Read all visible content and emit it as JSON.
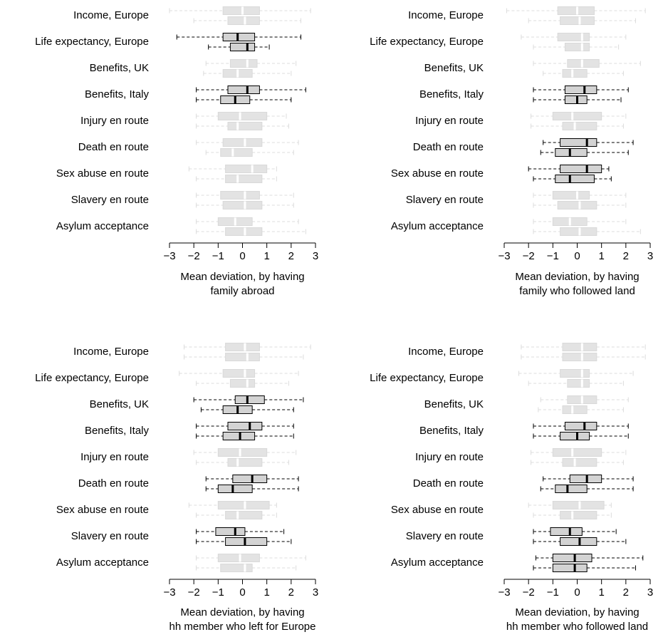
{
  "chart_data": [
    {
      "type": "boxplot",
      "xlabel": [
        "Mean deviation, by having",
        "family abroad"
      ],
      "xlim": [
        -3,
        3
      ],
      "xticks": [
        -3,
        -2,
        -1,
        0,
        1,
        2,
        3
      ],
      "categories": [
        "Income, Europe",
        "Life expectancy, Europe",
        "Benefits, UK",
        "Benefits, Italy",
        "Injury en route",
        "Death en route",
        "Sex abuse en route",
        "Slavery en route",
        "Asylum acceptance"
      ],
      "highlighted": [
        1,
        3
      ],
      "boxes": [
        [
          {
            "min": -3.0,
            "q1": -0.8,
            "median": 0.0,
            "q3": 0.7,
            "max": 2.8
          },
          {
            "min": -2.0,
            "q1": -0.6,
            "median": 0.1,
            "q3": 0.7,
            "max": 2.4
          }
        ],
        [
          {
            "min": -2.7,
            "q1": -0.8,
            "median": -0.2,
            "q3": 0.5,
            "max": 2.4
          },
          {
            "min": -1.4,
            "q1": -0.5,
            "median": 0.2,
            "q3": 0.5,
            "max": 1.1
          }
        ],
        [
          {
            "min": -1.5,
            "q1": -0.5,
            "median": 0.2,
            "q3": 0.6,
            "max": 2.2
          },
          {
            "min": -1.6,
            "q1": -0.8,
            "median": -0.2,
            "q3": 0.4,
            "max": 2.0
          }
        ],
        [
          {
            "min": -1.9,
            "q1": -0.6,
            "median": 0.2,
            "q3": 0.7,
            "max": 2.6
          },
          {
            "min": -1.9,
            "q1": -0.9,
            "median": -0.3,
            "q3": 0.3,
            "max": 2.0
          }
        ],
        [
          {
            "min": -1.9,
            "q1": -1.0,
            "median": -0.1,
            "q3": 1.0,
            "max": 1.8
          },
          {
            "min": -1.9,
            "q1": -0.6,
            "median": -0.2,
            "q3": 0.8,
            "max": 1.9
          }
        ],
        [
          {
            "min": -1.9,
            "q1": -0.8,
            "median": 0.1,
            "q3": 0.8,
            "max": 2.3
          },
          {
            "min": -1.5,
            "q1": -0.9,
            "median": -0.4,
            "q3": 0.4,
            "max": 2.1
          }
        ],
        [
          {
            "min": -2.2,
            "q1": -0.7,
            "median": 0.4,
            "q3": 1.0,
            "max": 1.4
          },
          {
            "min": -1.9,
            "q1": -0.7,
            "median": -0.2,
            "q3": 0.8,
            "max": 1.4
          }
        ],
        [
          {
            "min": -1.9,
            "q1": -0.9,
            "median": 0.1,
            "q3": 0.7,
            "max": 2.1
          },
          {
            "min": -1.9,
            "q1": -0.8,
            "median": 0.1,
            "q3": 0.8,
            "max": 2.1
          }
        ],
        [
          {
            "min": -1.9,
            "q1": -1.0,
            "median": -0.3,
            "q3": 0.4,
            "max": 2.3
          },
          {
            "min": -1.9,
            "q1": -0.7,
            "median": 0.1,
            "q3": 0.8,
            "max": 2.6
          }
        ]
      ]
    },
    {
      "type": "boxplot",
      "xlabel": [
        "Mean deviation, by having",
        "family who followed land"
      ],
      "xlim": [
        -3,
        3
      ],
      "xticks": [
        -3,
        -2,
        -1,
        0,
        1,
        2,
        3
      ],
      "categories": [
        "Income, Europe",
        "Life expectancy, Europe",
        "Benefits, UK",
        "Benefits, Italy",
        "Injury en route",
        "Death en route",
        "Sex abuse en route",
        "Slavery en route",
        "Asylum acceptance"
      ],
      "highlighted": [
        3,
        5,
        6
      ],
      "boxes": [
        [
          {
            "min": -2.9,
            "q1": -0.8,
            "median": 0.0,
            "q3": 0.7,
            "max": 2.8
          },
          {
            "min": -2.0,
            "q1": -0.7,
            "median": 0.1,
            "q3": 0.7,
            "max": 2.4
          }
        ],
        [
          {
            "min": -2.3,
            "q1": -0.8,
            "median": 0.2,
            "q3": 0.5,
            "max": 2.0
          },
          {
            "min": -1.8,
            "q1": -0.5,
            "median": 0.2,
            "q3": 0.5,
            "max": 1.7
          }
        ],
        [
          {
            "min": -1.8,
            "q1": -0.4,
            "median": 0.2,
            "q3": 0.9,
            "max": 2.6
          },
          {
            "min": -1.4,
            "q1": -0.6,
            "median": -0.2,
            "q3": 0.4,
            "max": 1.9
          }
        ],
        [
          {
            "min": -1.8,
            "q1": -0.5,
            "median": 0.3,
            "q3": 0.8,
            "max": 2.1
          },
          {
            "min": -1.8,
            "q1": -0.5,
            "median": 0.0,
            "q3": 0.4,
            "max": 1.8
          }
        ],
        [
          {
            "min": -1.9,
            "q1": -1.0,
            "median": -0.2,
            "q3": 1.0,
            "max": 2.0
          },
          {
            "min": -1.9,
            "q1": -0.6,
            "median": -0.1,
            "q3": 0.8,
            "max": 1.9
          }
        ],
        [
          {
            "min": -1.4,
            "q1": -0.7,
            "median": 0.4,
            "q3": 0.8,
            "max": 2.3
          },
          {
            "min": -1.5,
            "q1": -0.9,
            "median": -0.3,
            "q3": 0.4,
            "max": 2.1
          }
        ],
        [
          {
            "min": -2.0,
            "q1": -0.7,
            "median": 0.4,
            "q3": 1.0,
            "max": 1.3
          },
          {
            "min": -1.8,
            "q1": -0.9,
            "median": -0.3,
            "q3": 0.7,
            "max": 1.4
          }
        ],
        [
          {
            "min": -1.8,
            "q1": -1.0,
            "median": 0.0,
            "q3": 0.5,
            "max": 2.0
          },
          {
            "min": -1.8,
            "q1": -0.8,
            "median": 0.1,
            "q3": 0.8,
            "max": 2.0
          }
        ],
        [
          {
            "min": -1.8,
            "q1": -1.0,
            "median": -0.3,
            "q3": 0.4,
            "max": 2.0
          },
          {
            "min": -1.8,
            "q1": -0.7,
            "median": 0.1,
            "q3": 0.8,
            "max": 2.6
          }
        ]
      ]
    },
    {
      "type": "boxplot",
      "xlabel": [
        "Mean deviation, by having",
        "hh member who left for Europe"
      ],
      "xlim": [
        -3,
        3
      ],
      "xticks": [
        -3,
        -2,
        -1,
        0,
        1,
        2,
        3
      ],
      "categories": [
        "Income, Europe",
        "Life expectancy, Europe",
        "Benefits, UK",
        "Benefits, Italy",
        "Injury en route",
        "Death en route",
        "Sex abuse en route",
        "Slavery en route",
        "Asylum acceptance"
      ],
      "highlighted": [
        2,
        3,
        5,
        7
      ],
      "boxes": [
        [
          {
            "min": -2.4,
            "q1": -0.7,
            "median": 0.1,
            "q3": 0.7,
            "max": 2.8
          },
          {
            "min": -2.4,
            "q1": -0.7,
            "median": 0.2,
            "q3": 0.7,
            "max": 2.5
          }
        ],
        [
          {
            "min": -2.6,
            "q1": -0.8,
            "median": 0.1,
            "q3": 0.5,
            "max": 2.3
          },
          {
            "min": -1.9,
            "q1": -0.5,
            "median": 0.2,
            "q3": 0.5,
            "max": 1.9
          }
        ],
        [
          {
            "min": -2.0,
            "q1": -0.3,
            "median": 0.2,
            "q3": 0.9,
            "max": 2.5
          },
          {
            "min": -1.7,
            "q1": -0.8,
            "median": -0.2,
            "q3": 0.4,
            "max": 2.1
          }
        ],
        [
          {
            "min": -1.9,
            "q1": -0.6,
            "median": 0.3,
            "q3": 0.8,
            "max": 2.1
          },
          {
            "min": -1.9,
            "q1": -0.8,
            "median": -0.1,
            "q3": 0.5,
            "max": 2.1
          }
        ],
        [
          {
            "min": -2.0,
            "q1": -1.0,
            "median": -0.1,
            "q3": 1.0,
            "max": 2.2
          },
          {
            "min": -1.9,
            "q1": -0.6,
            "median": -0.2,
            "q3": 0.8,
            "max": 1.9
          }
        ],
        [
          {
            "min": -1.5,
            "q1": -0.4,
            "median": 0.4,
            "q3": 1.0,
            "max": 2.3
          },
          {
            "min": -1.5,
            "q1": -1.0,
            "median": -0.4,
            "q3": 0.4,
            "max": 2.3
          }
        ],
        [
          {
            "min": -2.2,
            "q1": -1.0,
            "median": 0.1,
            "q3": 1.1,
            "max": 1.4
          },
          {
            "min": -1.9,
            "q1": -0.7,
            "median": -0.2,
            "q3": 0.8,
            "max": 1.4
          }
        ],
        [
          {
            "min": -1.9,
            "q1": -1.1,
            "median": -0.3,
            "q3": 0.1,
            "max": 1.7
          },
          {
            "min": -1.9,
            "q1": -0.7,
            "median": 0.1,
            "q3": 1.0,
            "max": 2.0
          }
        ],
        [
          {
            "min": -1.9,
            "q1": -1.0,
            "median": -0.1,
            "q3": 0.7,
            "max": 2.6
          },
          {
            "min": -1.9,
            "q1": -0.9,
            "median": 0.1,
            "q3": 0.4,
            "max": 2.2
          }
        ]
      ]
    },
    {
      "type": "boxplot",
      "xlabel": [
        "Mean deviation, by having",
        "hh member who followed land"
      ],
      "xlim": [
        -3,
        3
      ],
      "xticks": [
        -3,
        -2,
        -1,
        0,
        1,
        2,
        3
      ],
      "categories": [
        "Income, Europe",
        "Life expectancy, Europe",
        "Benefits, UK",
        "Benefits, Italy",
        "Injury en route",
        "Death en route",
        "Sex abuse en route",
        "Slavery en route",
        "Asylum acceptance"
      ],
      "highlighted": [
        3,
        5,
        7,
        8
      ],
      "boxes": [
        [
          {
            "min": -2.3,
            "q1": -0.6,
            "median": 0.2,
            "q3": 0.8,
            "max": 2.8
          },
          {
            "min": -2.3,
            "q1": -0.6,
            "median": 0.2,
            "q3": 0.8,
            "max": 2.8
          }
        ],
        [
          {
            "min": -2.4,
            "q1": -0.7,
            "median": 0.2,
            "q3": 0.5,
            "max": 2.3
          },
          {
            "min": -2.0,
            "q1": -0.4,
            "median": 0.2,
            "q3": 0.5,
            "max": 1.9
          }
        ],
        [
          {
            "min": -1.5,
            "q1": -0.4,
            "median": 0.2,
            "q3": 0.8,
            "max": 2.1
          },
          {
            "min": -1.6,
            "q1": -0.6,
            "median": -0.2,
            "q3": 0.4,
            "max": 1.9
          }
        ],
        [
          {
            "min": -1.8,
            "q1": -0.5,
            "median": 0.3,
            "q3": 0.8,
            "max": 2.1
          },
          {
            "min": -1.8,
            "q1": -0.7,
            "median": 0.0,
            "q3": 0.5,
            "max": 2.1
          }
        ],
        [
          {
            "min": -1.9,
            "q1": -1.0,
            "median": -0.2,
            "q3": 1.0,
            "max": 2.0
          },
          {
            "min": -1.9,
            "q1": -0.6,
            "median": -0.1,
            "q3": 0.8,
            "max": 1.9
          }
        ],
        [
          {
            "min": -1.4,
            "q1": -0.3,
            "median": 0.4,
            "q3": 1.0,
            "max": 2.3
          },
          {
            "min": -1.5,
            "q1": -0.9,
            "median": -0.4,
            "q3": 0.4,
            "max": 2.3
          }
        ],
        [
          {
            "min": -2.0,
            "q1": -1.0,
            "median": 0.1,
            "q3": 1.1,
            "max": 1.4
          },
          {
            "min": -1.8,
            "q1": -0.7,
            "median": -0.2,
            "q3": 0.8,
            "max": 1.4
          }
        ],
        [
          {
            "min": -1.8,
            "q1": -1.1,
            "median": -0.3,
            "q3": 0.2,
            "max": 1.6
          },
          {
            "min": -1.8,
            "q1": -0.7,
            "median": 0.1,
            "q3": 0.8,
            "max": 2.0
          }
        ],
        [
          {
            "min": -1.7,
            "q1": -1.0,
            "median": -0.1,
            "q3": 0.6,
            "max": 2.7
          },
          {
            "min": -1.8,
            "q1": -1.0,
            "median": -0.1,
            "q3": 0.4,
            "max": 2.4
          }
        ]
      ]
    }
  ]
}
